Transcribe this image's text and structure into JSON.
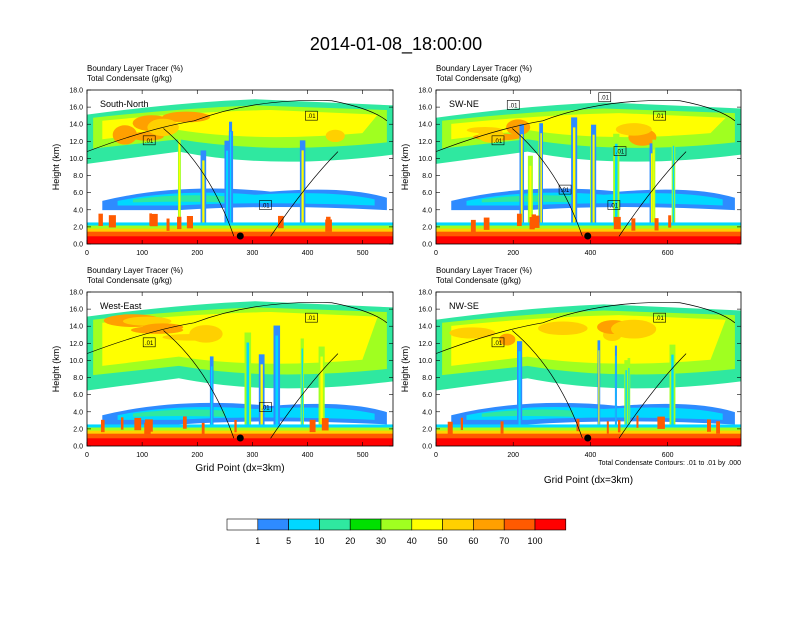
{
  "title": "2014-01-08_18:00:00",
  "chart_data": {
    "type": "heatmap",
    "panels": [
      {
        "label": "South-North",
        "left_title_1": "Boundary Layer Tracer   (%)",
        "left_title_2": "Total Condensate   (g/kg)",
        "ylabel": "Height (km)",
        "xlabel": "",
        "xlim": [
          0,
          555
        ],
        "ylim": [
          0,
          18
        ],
        "xticks": [
          "0",
          "100",
          "200",
          "300",
          "400",
          "500"
        ],
        "xtick_values": [
          0,
          100,
          200,
          300,
          400,
          500
        ],
        "contour_labels": [
          ".01",
          ".01",
          ".01"
        ],
        "marker_x": 278
      },
      {
        "label": "SW-NE",
        "left_title_1": "Boundary Layer Tracer   (%)",
        "left_title_2": "Total Condensate   (g/kg)",
        "ylabel": "Height (km)",
        "xlabel": "",
        "xlim": [
          0,
          790
        ],
        "ylim": [
          0,
          18
        ],
        "xticks": [
          "0",
          "200",
          "400",
          "600"
        ],
        "xtick_values": [
          0,
          200,
          400,
          600
        ],
        "contour_labels": [
          ".01",
          ".01",
          ".01",
          ".01",
          ".01",
          ".01",
          ".01"
        ],
        "marker_x": 393
      },
      {
        "label": "West-East",
        "left_title_1": "Boundary Layer Tracer   (%)",
        "left_title_2": "Total Condensate   (g/kg)",
        "ylabel": "Height (km)",
        "xlabel": "Grid Point (dx=3km)",
        "xlim": [
          0,
          555
        ],
        "ylim": [
          0,
          18
        ],
        "xticks": [
          "0",
          "100",
          "200",
          "300",
          "400",
          "500"
        ],
        "xtick_values": [
          0,
          100,
          200,
          300,
          400,
          500
        ],
        "contour_labels": [
          ".01",
          ".01",
          ".01"
        ],
        "marker_x": 278
      },
      {
        "label": "NW-SE",
        "left_title_1": "Boundary Layer Tracer   (%)",
        "left_title_2": "Total Condensate   (g/kg)",
        "ylabel": "Height (km)",
        "xlabel": "Grid Point (dx=3km)",
        "xlim": [
          0,
          790
        ],
        "ylim": [
          0,
          18
        ],
        "xticks": [
          "0",
          "200",
          "400",
          "600"
        ],
        "xtick_values": [
          0,
          200,
          400,
          600
        ],
        "contour_labels": [
          ".01",
          ".01"
        ],
        "marker_x": 393
      }
    ],
    "yticks": [
      "0.0",
      "2.0",
      "4.0",
      "6.0",
      "8.0",
      "10.0",
      "12.0",
      "14.0",
      "16.0",
      "18.0"
    ],
    "ytick_values": [
      0,
      2,
      4,
      6,
      8,
      10,
      12,
      14,
      16,
      18
    ],
    "contour_info": "Total Condensate Contours: .01 to .01 by .000",
    "colorbar": {
      "labels": [
        "1",
        "5",
        "10",
        "20",
        "30",
        "40",
        "50",
        "60",
        "70",
        "100"
      ],
      "colors": [
        "#ffffff",
        "#2e8bff",
        "#00d8ff",
        "#2fe8a0",
        "#00e000",
        "#a0ff20",
        "#ffff00",
        "#ffd000",
        "#ffa000",
        "#ff5a00",
        "#ff0000"
      ]
    }
  }
}
